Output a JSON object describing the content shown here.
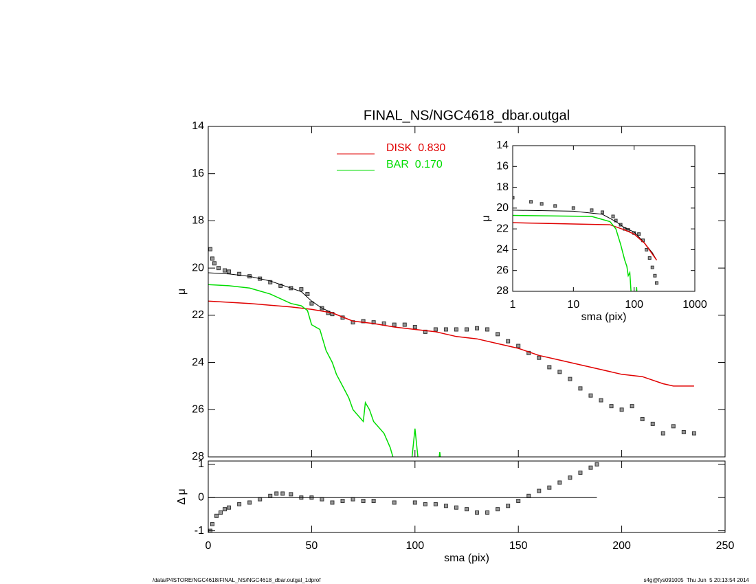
{
  "chart_data": [
    {
      "type": "line",
      "title": "FINAL_NS/NGC4618_dbar.outgal",
      "ylabel": "μ",
      "xlim": [
        0,
        250
      ],
      "ylim": [
        28,
        14
      ],
      "xticks": [
        0,
        50,
        100,
        150,
        200,
        250
      ],
      "show_xtick_labels": false,
      "yticks": [
        14,
        16,
        18,
        20,
        22,
        24,
        26,
        28
      ],
      "legend": "top",
      "series": [
        {
          "color": "#999999",
          "marker": "square",
          "x": [
            1,
            2,
            3,
            5,
            8,
            10,
            15,
            20,
            25,
            30,
            35,
            40,
            45,
            48,
            50,
            55,
            58,
            60,
            65,
            70,
            75,
            80,
            85,
            90,
            95,
            100,
            105,
            110,
            115,
            120,
            125,
            130,
            135,
            140,
            145,
            150,
            155,
            160,
            165,
            170,
            175,
            180,
            185,
            190,
            195,
            200,
            205,
            210,
            215,
            220,
            225,
            230,
            235
          ],
          "values": [
            19.2,
            19.6,
            19.8,
            20.0,
            20.1,
            20.15,
            20.25,
            20.35,
            20.45,
            20.6,
            20.75,
            20.85,
            20.9,
            21.1,
            21.5,
            21.7,
            21.9,
            21.95,
            22.1,
            22.3,
            22.25,
            22.3,
            22.35,
            22.4,
            22.4,
            22.5,
            22.7,
            22.6,
            22.6,
            22.6,
            22.6,
            22.55,
            22.6,
            22.8,
            23.1,
            23.3,
            23.6,
            23.8,
            24.2,
            24.4,
            24.7,
            25.1,
            25.4,
            25.6,
            25.85,
            26.0,
            25.85,
            26.4,
            26.6,
            27.0,
            26.7,
            26.95,
            27.0
          ]
        },
        {
          "color": "#000000",
          "x": [
            0,
            10,
            20,
            30,
            40,
            45,
            50,
            55,
            60,
            70
          ],
          "values": [
            20.2,
            20.25,
            20.35,
            20.55,
            20.85,
            21.0,
            21.4,
            21.7,
            21.9,
            22.25
          ]
        },
        {
          "name": "DISK  0.830",
          "color": "#e00000",
          "x": [
            0,
            20,
            40,
            50,
            60,
            70,
            80,
            90,
            100,
            110,
            120,
            130,
            140,
            150,
            160,
            170,
            180,
            190,
            200,
            210,
            220,
            225,
            235
          ],
          "values": [
            21.4,
            21.5,
            21.65,
            21.75,
            21.9,
            22.25,
            22.35,
            22.5,
            22.6,
            22.7,
            22.9,
            23.0,
            23.2,
            23.4,
            23.7,
            23.9,
            24.1,
            24.3,
            24.5,
            24.6,
            24.9,
            25.0,
            25.0
          ]
        },
        {
          "name": "BAR  0.170",
          "color": "#00dd00",
          "x": [
            0,
            10,
            20,
            30,
            40,
            45,
            48,
            50,
            54,
            57,
            60,
            62,
            65,
            68,
            70,
            73,
            75,
            76,
            78,
            80,
            85,
            88,
            91,
            98,
            100,
            102,
            111,
            112,
            113
          ],
          "values": [
            20.7,
            20.75,
            20.85,
            21.1,
            21.5,
            21.6,
            21.8,
            22.4,
            22.6,
            23.5,
            24.0,
            24.5,
            25.0,
            25.5,
            26.0,
            26.3,
            26.5,
            25.7,
            26.0,
            26.5,
            27.0,
            27.6,
            28.5,
            28.5,
            26.8,
            28.5,
            28.5,
            27.8,
            28.5
          ]
        }
      ]
    },
    {
      "type": "line",
      "xlabel": "sma (pix)",
      "ylabel": "μ",
      "xlog": true,
      "xlim": [
        1,
        1000
      ],
      "ylim": [
        28,
        14
      ],
      "xticks": [
        1,
        10,
        100,
        1000
      ],
      "show_xtick_labels": true,
      "yticks": [
        14,
        16,
        18,
        20,
        22,
        24,
        26,
        28
      ],
      "series": [
        {
          "color": "#999999",
          "marker": "square",
          "x": [
            1,
            2,
            3,
            5,
            10,
            20,
            30,
            45,
            50,
            60,
            70,
            80,
            100,
            120,
            140,
            160,
            180,
            200,
            220,
            235
          ],
          "values": [
            19.0,
            19.4,
            19.6,
            19.8,
            20.0,
            20.2,
            20.4,
            20.8,
            21.2,
            21.6,
            22.0,
            22.1,
            22.4,
            22.5,
            23.1,
            24.0,
            24.8,
            25.7,
            26.5,
            27.2
          ]
        },
        {
          "color": "#000000",
          "x": [
            1,
            10,
            30,
            50,
            70,
            100,
            140,
            200,
            235
          ],
          "values": [
            20.2,
            20.3,
            20.6,
            21.3,
            21.9,
            22.3,
            23.2,
            24.3,
            25.0
          ]
        },
        {
          "color": "#e00000",
          "x": [
            1,
            40,
            70,
            100,
            150,
            235
          ],
          "values": [
            21.4,
            21.6,
            22.1,
            22.5,
            23.4,
            25.0
          ]
        },
        {
          "color": "#00dd00",
          "x": [
            1,
            20,
            40,
            50,
            60,
            70,
            76,
            80,
            85,
            90,
            100,
            108,
            110,
            112
          ],
          "values": [
            20.7,
            20.8,
            21.3,
            22.0,
            23.5,
            25.0,
            25.6,
            26.5,
            26.2,
            28.5,
            28.5,
            28.5,
            27.6,
            28.5
          ]
        }
      ]
    },
    {
      "type": "scatter",
      "xlabel": "sma (pix)",
      "ylabel": "Δ μ",
      "xlim": [
        0,
        250
      ],
      "ylim": [
        -1.05,
        1.1
      ],
      "xticks": [
        0,
        50,
        100,
        150,
        200,
        250
      ],
      "show_xtick_labels": true,
      "yticks": [
        -1,
        0,
        1
      ],
      "hline": 0,
      "series": [
        {
          "color": "#999999",
          "marker": "square",
          "x": [
            1,
            2,
            4,
            6,
            8,
            10,
            15,
            20,
            25,
            30,
            33,
            36,
            40,
            45,
            50,
            55,
            60,
            65,
            70,
            75,
            80,
            90,
            100,
            105,
            110,
            115,
            120,
            125,
            130,
            135,
            140,
            145,
            150,
            155,
            160,
            165,
            170,
            175,
            180,
            185,
            188
          ],
          "values": [
            -1.0,
            -0.8,
            -0.55,
            -0.45,
            -0.35,
            -0.3,
            -0.2,
            -0.15,
            -0.05,
            0.05,
            0.12,
            0.12,
            0.1,
            0.0,
            0.0,
            -0.05,
            -0.15,
            -0.1,
            -0.05,
            -0.1,
            -0.1,
            -0.15,
            -0.15,
            -0.2,
            -0.2,
            -0.25,
            -0.3,
            -0.35,
            -0.45,
            -0.45,
            -0.35,
            -0.25,
            -0.1,
            0.05,
            0.2,
            0.3,
            0.45,
            0.6,
            0.75,
            0.9,
            1.0
          ]
        }
      ]
    }
  ],
  "footer": {
    "left": "/data/P4STORE/NGC4618/FINAL_NS/NGC4618_dbar.outgal_1dprof",
    "right": "s4g@fys091005  Thu Jun  5 20:13:54 2014"
  }
}
